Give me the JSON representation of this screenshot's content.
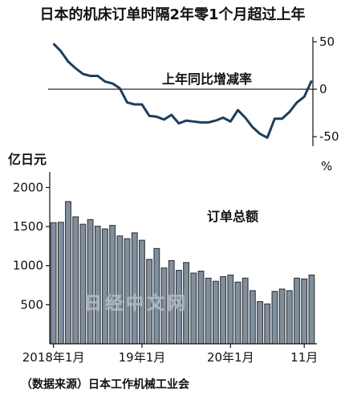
{
  "title": "日本的机床订单时隔2年零1个月超过上年",
  "source": "（数据来源）日本工作机械工业会",
  "watermark": "日经中文网",
  "colors": {
    "bar": "#7f8fa0",
    "bar_stroke": "#2b2b2b",
    "line": "#1e3d5c",
    "axis": "#111111"
  },
  "chart_data": [
    {
      "type": "line",
      "label": "上年同比增减率",
      "y_unit": "%",
      "ylim": [
        -60,
        55
      ],
      "y_ticks": [
        50,
        0,
        -50
      ],
      "y_tick_labels": [
        "50",
        "0",
        "-50"
      ],
      "values": [
        48,
        40,
        29,
        22,
        16,
        14,
        14,
        8,
        6,
        1,
        -14,
        -16,
        -16,
        -28,
        -29,
        -32,
        -27,
        -36,
        -33,
        -34,
        -35,
        -35,
        -33,
        -30,
        -34,
        -22,
        -30,
        -40,
        -47,
        -51,
        -31,
        -31,
        -24,
        -14,
        -8,
        9
      ]
    },
    {
      "type": "bar",
      "ylabel": "亿日元",
      "label": "订单总额",
      "ylim": [
        0,
        2200
      ],
      "y_ticks": [
        2000,
        1500,
        1000,
        500
      ],
      "y_tick_labels": [
        "2000",
        "1500",
        "1000",
        "500"
      ],
      "x_labels": [
        "2018年1月",
        "19年1月",
        "20年1月",
        "11月"
      ],
      "x_label_index": [
        0,
        12,
        24,
        34
      ],
      "values": [
        1550,
        1555,
        1820,
        1625,
        1530,
        1590,
        1505,
        1470,
        1515,
        1380,
        1345,
        1420,
        1325,
        1080,
        1220,
        970,
        1065,
        940,
        1040,
        905,
        930,
        840,
        800,
        860,
        880,
        790,
        840,
        680,
        540,
        510,
        670,
        700,
        680,
        840,
        830,
        880
      ]
    }
  ]
}
